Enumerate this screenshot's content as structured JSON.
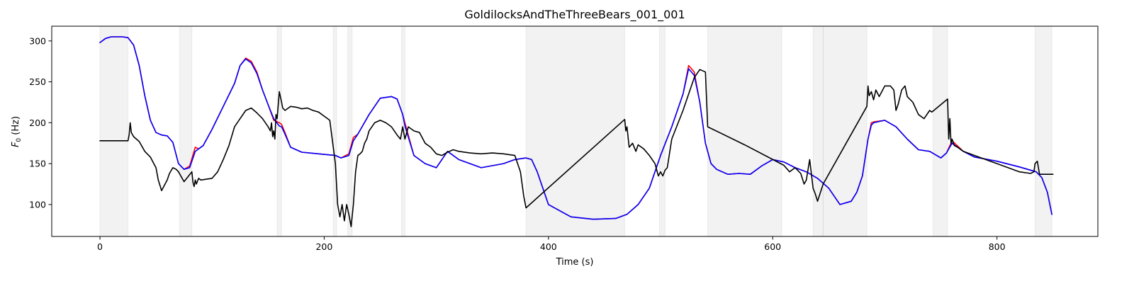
{
  "chart_data": {
    "type": "line",
    "title": "GoldilocksAndTheThreeBears_001_001",
    "xlabel": "Time (s)",
    "ylabel_base": "F",
    "ylabel_sub": "0",
    "ylabel_unit": " (Hz)",
    "xlim": [
      -43,
      890
    ],
    "ylim": [
      61,
      318
    ],
    "xticks": [
      0,
      200,
      400,
      600,
      800
    ],
    "yticks": [
      100,
      150,
      200,
      250,
      300
    ],
    "grid": false,
    "shaded_regions": [
      [
        0,
        25
      ],
      [
        71,
        82
      ],
      [
        158,
        162
      ],
      [
        208,
        211
      ],
      [
        221,
        225
      ],
      [
        269,
        272
      ],
      [
        380,
        468
      ],
      [
        499,
        504
      ],
      [
        542,
        608
      ],
      [
        636,
        645
      ],
      [
        645,
        684
      ],
      [
        743,
        756
      ],
      [
        834,
        849
      ]
    ],
    "colors": {
      "red": "#ff0000",
      "blue": "#0000ff",
      "black": "#000000",
      "shade": "#bebebe"
    },
    "series": [
      {
        "color": "red",
        "x": [
          0,
          5,
          10,
          15,
          20,
          25,
          30,
          35,
          40,
          45,
          50,
          55,
          60,
          65,
          70,
          75,
          80,
          85,
          88,
          92,
          100,
          110,
          120,
          125,
          130,
          135,
          140,
          145,
          150,
          155,
          160,
          162,
          165,
          170,
          180,
          195,
          210,
          215,
          222,
          226,
          230,
          240,
          250,
          260,
          265,
          270,
          272,
          280,
          290,
          300,
          310,
          320,
          340,
          360,
          370,
          380,
          385,
          390,
          400,
          420,
          440,
          460,
          470,
          480,
          490,
          500,
          510,
          520,
          525,
          530,
          535,
          540,
          545,
          550,
          560,
          570,
          580,
          590,
          600,
          610,
          620,
          630,
          640,
          650,
          660,
          670,
          675,
          680,
          685,
          688,
          690,
          700,
          710,
          720,
          730,
          740,
          750,
          755,
          760,
          770,
          780,
          800,
          820,
          835,
          840,
          845,
          849
        ],
        "y": [
          298,
          303,
          305,
          305,
          305,
          304,
          295,
          270,
          233,
          203,
          188,
          185,
          184,
          176,
          150,
          143,
          147,
          170,
          168,
          172,
          192,
          220,
          248,
          270,
          279,
          275,
          262,
          240,
          222,
          203,
          200,
          198,
          188,
          170,
          164,
          162,
          160,
          157,
          162,
          182,
          186,
          210,
          230,
          232,
          229,
          210,
          200,
          160,
          150,
          145,
          165,
          155,
          145,
          150,
          155,
          157,
          155,
          140,
          100,
          85,
          82,
          83,
          88,
          100,
          120,
          160,
          195,
          235,
          270,
          262,
          225,
          175,
          150,
          143,
          137,
          138,
          137,
          147,
          155,
          152,
          145,
          140,
          132,
          120,
          100,
          104,
          115,
          135,
          180,
          200,
          201,
          203,
          195,
          180,
          167,
          165,
          157,
          163,
          178,
          165,
          158,
          153,
          146,
          140,
          133,
          115,
          88
        ]
      },
      {
        "color": "blue",
        "x": [
          0,
          5,
          10,
          15,
          20,
          25,
          30,
          35,
          40,
          45,
          50,
          55,
          60,
          65,
          70,
          75,
          80,
          85,
          88,
          92,
          100,
          110,
          120,
          125,
          130,
          135,
          140,
          145,
          150,
          155,
          160,
          162,
          165,
          170,
          180,
          195,
          210,
          215,
          222,
          226,
          230,
          240,
          250,
          260,
          265,
          270,
          272,
          280,
          290,
          300,
          310,
          320,
          340,
          360,
          370,
          380,
          385,
          390,
          400,
          420,
          440,
          460,
          470,
          480,
          490,
          500,
          510,
          520,
          525,
          530,
          535,
          540,
          545,
          550,
          560,
          570,
          580,
          590,
          600,
          610,
          620,
          630,
          640,
          650,
          660,
          670,
          675,
          680,
          685,
          688,
          690,
          700,
          710,
          720,
          730,
          740,
          750,
          755,
          760,
          770,
          780,
          800,
          820,
          835,
          840,
          845,
          849
        ],
        "y": [
          298,
          303,
          305,
          305,
          305,
          304,
          295,
          270,
          233,
          203,
          188,
          185,
          184,
          176,
          150,
          143,
          145,
          165,
          168,
          172,
          192,
          220,
          248,
          270,
          278,
          273,
          260,
          240,
          222,
          205,
          196,
          195,
          186,
          170,
          164,
          162,
          160,
          157,
          160,
          178,
          186,
          210,
          230,
          232,
          229,
          210,
          196,
          160,
          150,
          145,
          165,
          155,
          145,
          150,
          155,
          157,
          155,
          140,
          100,
          85,
          82,
          83,
          88,
          100,
          120,
          160,
          195,
          235,
          266,
          258,
          225,
          175,
          150,
          143,
          137,
          138,
          137,
          147,
          155,
          152,
          145,
          140,
          132,
          120,
          100,
          104,
          115,
          135,
          180,
          197,
          200,
          203,
          195,
          180,
          167,
          165,
          157,
          163,
          175,
          165,
          158,
          153,
          146,
          140,
          133,
          115,
          88
        ]
      },
      {
        "color": "black",
        "x": [
          0,
          25,
          26,
          27,
          28,
          30,
          35,
          40,
          45,
          48,
          50,
          52,
          55,
          60,
          62,
          65,
          68,
          70,
          75,
          82,
          83,
          84,
          85,
          86,
          88,
          90,
          95,
          100,
          105,
          110,
          115,
          120,
          125,
          130,
          135,
          140,
          145,
          150,
          152,
          153,
          154,
          155,
          156,
          157,
          158,
          160,
          162,
          163,
          165,
          168,
          170,
          175,
          180,
          185,
          190,
          195,
          200,
          205,
          210,
          212,
          214,
          216,
          218,
          220,
          222,
          224,
          226,
          228,
          230,
          232,
          234,
          236,
          238,
          240,
          245,
          250,
          255,
          260,
          265,
          268,
          270,
          272,
          275,
          280,
          285,
          290,
          295,
          300,
          305,
          310,
          315,
          320,
          330,
          340,
          350,
          360,
          370,
          375,
          378,
          380,
          468,
          469,
          470,
          472,
          475,
          478,
          480,
          485,
          490,
          495,
          498,
          500,
          502,
          504,
          506,
          510,
          520,
          530,
          535,
          540,
          542,
          575,
          610,
          615,
          620,
          625,
          628,
          630,
          633,
          636,
          638,
          640,
          645,
          684,
          685,
          686,
          688,
          690,
          692,
          695,
          700,
          705,
          708,
          710,
          712,
          715,
          718,
          720,
          725,
          730,
          735,
          740,
          742,
          756,
          757,
          758,
          759,
          760,
          762,
          765,
          770,
          780,
          790,
          800,
          810,
          820,
          830,
          833,
          834,
          836,
          838,
          850
        ],
        "y": [
          178,
          178,
          185,
          200,
          188,
          183,
          177,
          165,
          158,
          150,
          145,
          130,
          117,
          130,
          138,
          145,
          143,
          140,
          128,
          140,
          127,
          122,
          130,
          125,
          132,
          130,
          131,
          132,
          140,
          155,
          172,
          195,
          205,
          215,
          218,
          212,
          205,
          195,
          190,
          200,
          183,
          190,
          180,
          210,
          205,
          238,
          225,
          218,
          215,
          218,
          220,
          219,
          217,
          218,
          215,
          213,
          208,
          203,
          150,
          100,
          85,
          100,
          80,
          100,
          88,
          73,
          100,
          140,
          160,
          162,
          165,
          175,
          180,
          190,
          200,
          203,
          200,
          195,
          185,
          180,
          195,
          180,
          195,
          190,
          188,
          175,
          170,
          162,
          160,
          164,
          167,
          165,
          163,
          162,
          163,
          162,
          160,
          140,
          110,
          96,
          204,
          190,
          195,
          170,
          175,
          165,
          173,
          168,
          160,
          150,
          135,
          140,
          135,
          142,
          145,
          180,
          215,
          255,
          265,
          262,
          195,
          173,
          148,
          140,
          145,
          138,
          125,
          130,
          155,
          120,
          113,
          104,
          125,
          220,
          245,
          233,
          238,
          228,
          240,
          232,
          245,
          245,
          240,
          215,
          223,
          240,
          245,
          232,
          225,
          210,
          205,
          215,
          213,
          229,
          180,
          205,
          175,
          180,
          172,
          170,
          165,
          160,
          155,
          150,
          145,
          140,
          138,
          140,
          150,
          153,
          137,
          137
        ]
      }
    ]
  }
}
